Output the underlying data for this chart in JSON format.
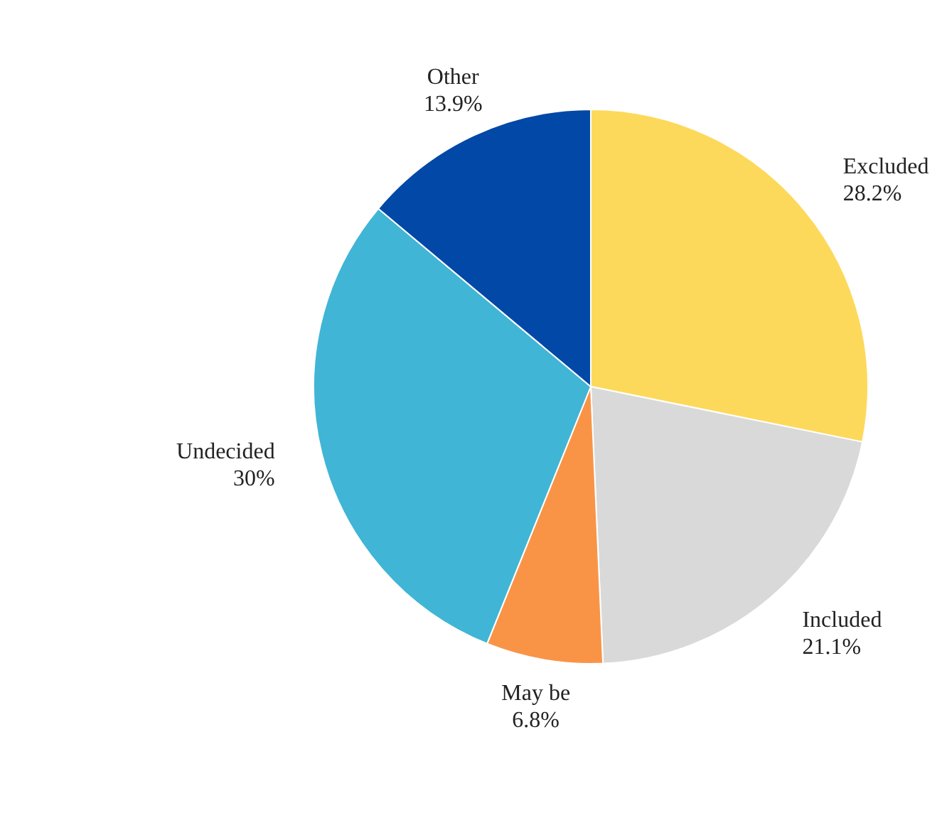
{
  "chart_data": {
    "type": "pie",
    "categories": [
      "Excluded",
      "Included",
      "May be",
      "Undecided",
      "Other"
    ],
    "values": [
      28.2,
      21.1,
      6.8,
      30,
      13.9
    ],
    "colors": [
      "#fdd95b",
      "#d9d9d9",
      "#f99447",
      "#41b5d5",
      "#0248a7"
    ],
    "value_labels": [
      "28.2%",
      "21.1%",
      "6.8%",
      "30%",
      "13.9%"
    ],
    "legend": false
  }
}
